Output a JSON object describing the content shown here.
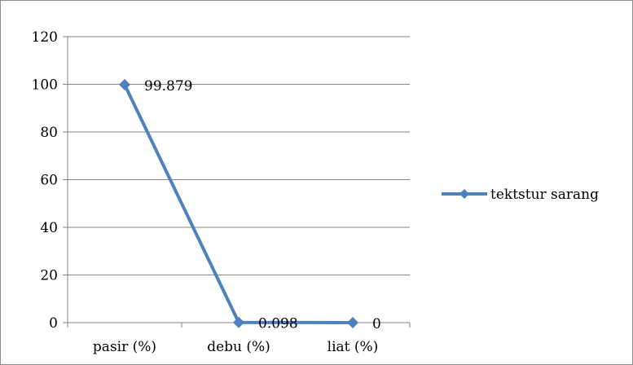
{
  "chart_data": {
    "type": "line",
    "title": "",
    "xlabel": "",
    "ylabel": "",
    "categories": [
      "pasir (%)",
      "debu (%)",
      "liat (%)"
    ],
    "series": [
      {
        "name": "tektstur sarang",
        "values": [
          99.879,
          0.098,
          0
        ],
        "data_labels": [
          "99.879",
          "0.098",
          "0"
        ],
        "color": "#4f81bd",
        "marker": "diamond"
      }
    ],
    "ylim": [
      0,
      120
    ],
    "yticks": [
      "0",
      "20",
      "40",
      "60",
      "80",
      "100",
      "120"
    ],
    "grid": true,
    "legend": "right"
  }
}
